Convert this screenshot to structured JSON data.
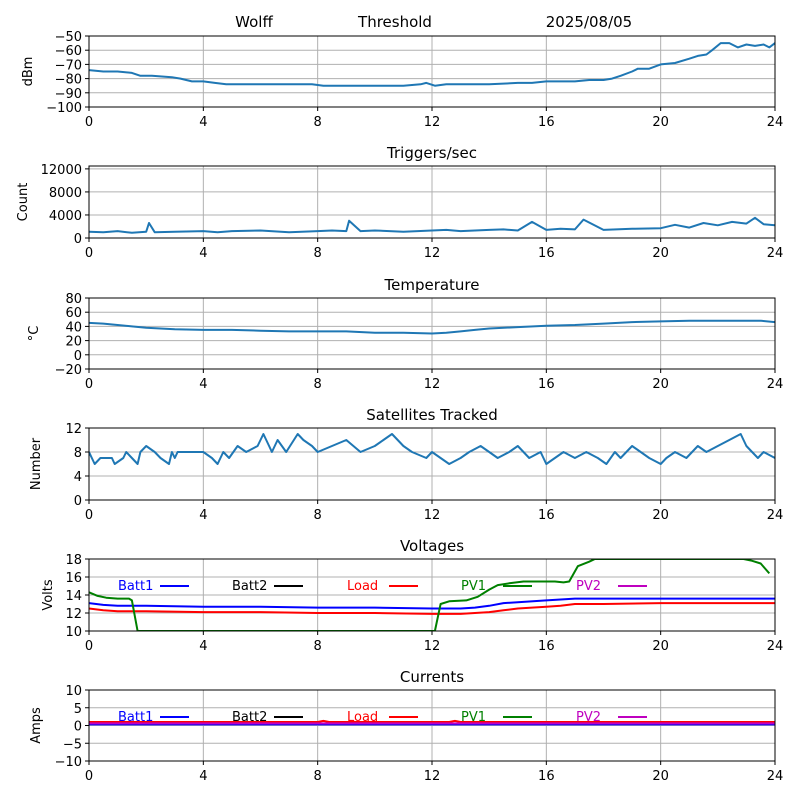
{
  "header": {
    "site": "Wolff",
    "mode": "Threshold",
    "date": "2025/08/05"
  },
  "colors": {
    "default_series": "#1f77b4",
    "batt1": "#0000ff",
    "batt2": "#000000",
    "load": "#ff0000",
    "pv1": "#008000",
    "pv2": "#bf00bf"
  },
  "x_axis": {
    "range": [
      0,
      24
    ],
    "ticks": [
      0,
      4,
      8,
      12,
      16,
      20,
      24
    ],
    "grid": true
  },
  "chart_data": [
    {
      "id": "threshold",
      "type": "line",
      "title": "",
      "xlabel": "",
      "ylabel": "dBm",
      "ylim": [
        -100,
        -50
      ],
      "yticks": [
        -100,
        -90,
        -80,
        -70,
        -60,
        -50
      ],
      "grid": true,
      "series": [
        {
          "color_key": "default_series",
          "x": [
            0,
            0.5,
            1,
            1.5,
            1.8,
            2.2,
            2.9,
            3.2,
            3.6,
            4.0,
            4.4,
            4.8,
            5.5,
            6.5,
            7.5,
            7.8,
            8.2,
            9,
            10,
            11,
            11.6,
            11.8,
            12.1,
            12.5,
            13,
            14,
            15,
            15.5,
            16,
            16.5,
            17,
            17.5,
            18,
            18.3,
            18.6,
            19,
            19.2,
            19.6,
            20,
            20.5,
            21,
            21.3,
            21.6,
            21.8,
            22.1,
            22.4,
            22.7,
            23.0,
            23.3,
            23.6,
            23.8,
            24
          ],
          "y": [
            -74,
            -75,
            -75,
            -76,
            -78,
            -78,
            -79,
            -80,
            -82,
            -82,
            -83,
            -84,
            -84,
            -84,
            -84,
            -84,
            -85,
            -85,
            -85,
            -85,
            -84,
            -83,
            -85,
            -84,
            -84,
            -84,
            -83,
            -83,
            -82,
            -82,
            -82,
            -81,
            -81,
            -80,
            -78,
            -75,
            -73,
            -73,
            -70,
            -69,
            -66,
            -64,
            -63,
            -60,
            -55,
            -55,
            -58,
            -56,
            -57,
            -56,
            -58,
            -55
          ]
        }
      ]
    },
    {
      "id": "triggers",
      "type": "line",
      "title": "Triggers/sec",
      "xlabel": "",
      "ylabel": "Count",
      "ylim": [
        0,
        12500
      ],
      "yticks": [
        0,
        4000,
        8000,
        12000
      ],
      "grid": true,
      "series": [
        {
          "color_key": "default_series",
          "x": [
            0,
            0.5,
            1,
            1.5,
            2,
            2.1,
            2.3,
            3,
            4,
            4.5,
            5,
            6,
            7,
            8,
            8.5,
            9,
            9.1,
            9.5,
            10,
            11,
            12,
            12.5,
            13,
            14,
            14.5,
            15,
            15.5,
            16,
            16.5,
            17,
            17.3,
            18,
            19,
            20,
            20.5,
            21,
            21.5,
            22,
            22.5,
            23,
            23.3,
            23.6,
            24
          ],
          "y": [
            1100,
            1000,
            1200,
            900,
            1100,
            2600,
            1000,
            1100,
            1200,
            1000,
            1200,
            1300,
            1000,
            1200,
            1300,
            1200,
            3000,
            1200,
            1300,
            1100,
            1300,
            1400,
            1200,
            1400,
            1500,
            1300,
            2800,
            1400,
            1600,
            1500,
            3200,
            1400,
            1600,
            1700,
            2300,
            1800,
            2600,
            2200,
            2800,
            2500,
            3500,
            2400,
            2200
          ]
        }
      ]
    },
    {
      "id": "temperature",
      "type": "line",
      "title": "Temperature",
      "xlabel": "",
      "ylabel": "°C",
      "ylim": [
        -20,
        80
      ],
      "yticks": [
        -20,
        0,
        20,
        40,
        60,
        80
      ],
      "grid": true,
      "series": [
        {
          "color_key": "default_series",
          "x": [
            0,
            0.5,
            1,
            1.5,
            2,
            3,
            4,
            5,
            6,
            7,
            8,
            9,
            10,
            11,
            12,
            12.5,
            13,
            13.5,
            14,
            15,
            16,
            17,
            18,
            19,
            20,
            21,
            22,
            23,
            23.5,
            24
          ],
          "y": [
            45,
            44,
            42,
            40,
            38,
            36,
            35,
            35,
            34,
            33,
            33,
            33,
            31,
            31,
            30,
            31,
            33,
            35,
            37,
            39,
            41,
            42,
            44,
            46,
            47,
            48,
            48,
            48,
            48,
            46
          ]
        }
      ]
    },
    {
      "id": "satellites",
      "type": "line",
      "title": "Satellites Tracked",
      "xlabel": "",
      "ylabel": "Number",
      "ylim": [
        0,
        12
      ],
      "yticks": [
        0,
        4,
        8,
        12
      ],
      "grid": true,
      "series": [
        {
          "color_key": "default_series",
          "x": [
            0,
            0.2,
            0.4,
            0.8,
            0.9,
            1.2,
            1.3,
            1.5,
            1.7,
            1.8,
            2.0,
            2.3,
            2.5,
            2.8,
            2.9,
            3.0,
            3.1,
            3.5,
            4.0,
            4.3,
            4.5,
            4.7,
            4.9,
            5.2,
            5.5,
            5.9,
            6.1,
            6.3,
            6.4,
            6.6,
            6.9,
            7.3,
            7.5,
            7.8,
            8.0,
            8.5,
            9.0,
            9.5,
            10.0,
            10.3,
            10.6,
            11.0,
            11.3,
            11.8,
            12.0,
            12.3,
            12.6,
            13.0,
            13.3,
            13.7,
            14.0,
            14.3,
            14.7,
            15.0,
            15.4,
            15.8,
            16.0,
            16.3,
            16.6,
            17.0,
            17.4,
            17.8,
            18.1,
            18.4,
            18.6,
            19.0,
            19.3,
            19.6,
            20.0,
            20.2,
            20.5,
            20.9,
            21.3,
            21.6,
            22.0,
            22.4,
            22.8,
            23.0,
            23.2,
            23.4,
            23.6,
            24
          ],
          "y": [
            8,
            6,
            7,
            7,
            6,
            7,
            8,
            7,
            6,
            8,
            9,
            8,
            7,
            6,
            8,
            7,
            8,
            8,
            8,
            7,
            6,
            8,
            7,
            9,
            8,
            9,
            11,
            9,
            8,
            10,
            8,
            11,
            10,
            9,
            8,
            9,
            10,
            8,
            9,
            10,
            11,
            9,
            8,
            7,
            8,
            7,
            6,
            7,
            8,
            9,
            8,
            7,
            8,
            9,
            7,
            8,
            6,
            7,
            8,
            7,
            8,
            7,
            6,
            8,
            7,
            9,
            8,
            7,
            6,
            7,
            8,
            7,
            9,
            8,
            9,
            10,
            11,
            9,
            8,
            7,
            8,
            7
          ]
        }
      ]
    },
    {
      "id": "voltages",
      "type": "line",
      "title": "Voltages",
      "xlabel": "",
      "ylabel": "Volts",
      "ylim": [
        10,
        18
      ],
      "yticks": [
        10,
        12,
        14,
        16,
        18
      ],
      "grid": true,
      "legend": [
        "Batt1",
        "Batt2",
        "Load",
        "PV1",
        "PV2"
      ],
      "legend_placement": "top, single row inside plot",
      "series": [
        {
          "name": "Batt1",
          "color_key": "batt1",
          "x": [
            0,
            0.5,
            1,
            2,
            4,
            6,
            8,
            10,
            12,
            13,
            13.5,
            14,
            14.5,
            15,
            16,
            16.5,
            17,
            18,
            20,
            22,
            24
          ],
          "y": [
            13.1,
            12.9,
            12.8,
            12.8,
            12.7,
            12.7,
            12.6,
            12.6,
            12.5,
            12.5,
            12.6,
            12.8,
            13.1,
            13.2,
            13.4,
            13.5,
            13.6,
            13.6,
            13.6,
            13.6,
            13.6
          ]
        },
        {
          "name": "Load",
          "color_key": "load",
          "x": [
            0,
            0.5,
            1,
            2,
            4,
            6,
            8,
            10,
            12,
            13,
            14,
            14.5,
            15,
            15.5,
            16,
            16.5,
            17,
            18,
            20,
            22,
            24
          ],
          "y": [
            12.5,
            12.3,
            12.2,
            12.2,
            12.1,
            12.1,
            12.0,
            12.0,
            11.9,
            11.9,
            12.1,
            12.3,
            12.5,
            12.6,
            12.7,
            12.8,
            13.0,
            13.0,
            13.1,
            13.1,
            13.1
          ]
        },
        {
          "name": "PV1",
          "color_key": "pv1",
          "x": [
            0,
            0.3,
            0.6,
            1.0,
            1.4,
            1.5,
            1.7,
            12.1,
            12.3,
            12.6,
            13.2,
            13.6,
            14.0,
            14.3,
            14.7,
            15.2,
            15.6,
            16.0,
            16.3,
            16.6,
            16.8,
            17.1,
            17.5,
            17.7,
            22.9,
            23.2,
            23.5,
            23.8
          ],
          "y": [
            14.3,
            13.9,
            13.7,
            13.6,
            13.6,
            13.4,
            10,
            10,
            13.0,
            13.3,
            13.4,
            13.8,
            14.6,
            15.1,
            15.3,
            15.5,
            15.5,
            15.5,
            15.5,
            15.4,
            15.5,
            17.2,
            17.7,
            18,
            18,
            17.8,
            17.5,
            16.4
          ]
        }
      ]
    },
    {
      "id": "currents",
      "type": "line",
      "title": "Currents",
      "xlabel": "",
      "ylabel": "Amps",
      "ylim": [
        -10,
        10
      ],
      "yticks": [
        -10,
        -5,
        0,
        5,
        10
      ],
      "grid": true,
      "legend": [
        "Batt1",
        "Batt2",
        "Load",
        "PV1",
        "PV2"
      ],
      "legend_placement": "top, single row inside plot",
      "series": [
        {
          "name": "Batt1",
          "color_key": "batt1",
          "x": [
            0,
            24
          ],
          "y": [
            0.3,
            0.3
          ]
        },
        {
          "name": "Load",
          "color_key": "load",
          "x": [
            0,
            8,
            8.2,
            8.4,
            12.6,
            12.8,
            13.0,
            24
          ],
          "y": [
            1.0,
            1.0,
            1.3,
            1.0,
            1.0,
            1.3,
            1.0,
            1.0
          ]
        },
        {
          "name": "PV2",
          "color_key": "pv2",
          "x": [
            0,
            24
          ],
          "y": [
            0.6,
            0.6
          ]
        }
      ]
    }
  ]
}
